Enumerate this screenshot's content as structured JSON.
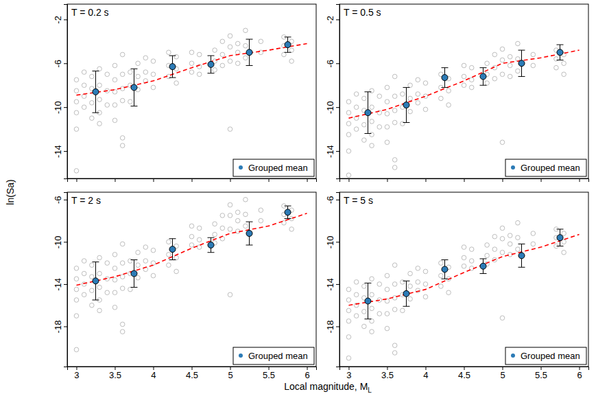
{
  "x_label": "Local magnitude, ML",
  "y_label": "ln(Sa)",
  "chart_data": [
    {
      "type": "scatter",
      "title": "T = 0.2 s",
      "xlim": [
        2.88,
        6.12
      ],
      "xticks": [
        3,
        3.5,
        4,
        4.5,
        5,
        5.5,
        6
      ],
      "ylim": [
        -16.5,
        -0.6
      ],
      "yticks": [
        -2,
        -6,
        -10,
        -14
      ],
      "tick_labels": "y",
      "legend": "bottom-right",
      "series": [
        {
          "type": "scatter",
          "color": "#bdbdbd",
          "marker": "open-circle",
          "x": [
            3,
            3,
            3,
            3,
            3,
            3,
            3.1,
            3.1,
            3.1,
            3.1,
            3.2,
            3.2,
            3.2,
            3.2,
            3.3,
            3.3,
            3.3,
            3.3,
            3.3,
            3.4,
            3.4,
            3.4,
            3.5,
            3.5,
            3.5,
            3.5,
            3.5,
            3.6,
            3.6,
            3.6,
            3.6,
            3.6,
            3.6,
            3.7,
            3.7,
            3.7,
            3.8,
            3.8,
            3.8,
            3.9,
            3.9,
            3.9,
            4,
            4,
            4,
            4.2,
            4.2,
            4.2,
            4.3,
            4.3,
            4.3,
            4.5,
            4.5,
            4.5,
            4.6,
            4.6,
            4.6,
            4.8,
            4.8,
            4.8,
            4.9,
            4.9,
            4.9,
            5,
            5,
            5,
            5,
            5.1,
            5.1,
            5.1,
            5.2,
            5.2,
            5.2,
            5.4,
            5.4,
            5.7,
            5.7,
            5.7,
            5.8,
            5.8,
            5.8
          ],
          "values": [
            -7.5,
            -8.5,
            -9.5,
            -10.5,
            -12,
            -15.8,
            -6.8,
            -8,
            -9,
            -10,
            -7.2,
            -8.3,
            -9.6,
            -11,
            -6.5,
            -8,
            -9.3,
            -10.5,
            -11.5,
            -7,
            -8.5,
            -9.8,
            -6.2,
            -7.5,
            -8.6,
            -9.8,
            -11.2,
            -5.2,
            -7,
            -8.3,
            -9.4,
            -12.8,
            -13.5,
            -6.8,
            -8,
            -9.5,
            -6,
            -7.2,
            -8.4,
            -5.5,
            -6.8,
            -7.6,
            -5.8,
            -7,
            -8.2,
            -5,
            -6.2,
            -7.2,
            -5.4,
            -6.5,
            -7.8,
            -5,
            -6,
            -6.8,
            -5.2,
            -6.3,
            -7,
            -4.8,
            -5.8,
            -6.6,
            -4,
            -5.2,
            -6.2,
            -3.5,
            -4.5,
            -5.8,
            -12,
            -4.2,
            -5,
            -6,
            -3,
            -4.4,
            -5.5,
            -4,
            -5,
            -3.6,
            -4.4,
            -5.2,
            -4,
            -4.8,
            -5.8
          ]
        },
        {
          "type": "line",
          "color": "#ff0000",
          "line_style": "dashed",
          "x": [
            3,
            3.5,
            4,
            4.5,
            5,
            5.5,
            6
          ],
          "values": [
            -8.9,
            -8.4,
            -7.6,
            -6.4,
            -5.3,
            -4.8,
            -4.2
          ]
        },
        {
          "name": "Grouped mean",
          "type": "scatter",
          "color": "#2c7bb6",
          "marker": "circle",
          "x": [
            3.25,
            3.75,
            4.25,
            4.75,
            5.25,
            5.75
          ],
          "values": [
            -8.6,
            -8.2,
            -6.3,
            -6.1,
            -5.0,
            -4.3
          ],
          "error": [
            1.9,
            1.7,
            1.0,
            0.8,
            1.2,
            0.7
          ]
        }
      ]
    },
    {
      "type": "scatter",
      "title": "T = 0.5 s",
      "xlim": [
        2.88,
        6.12
      ],
      "xticks": [
        3,
        3.5,
        4,
        4.5,
        5,
        5.5,
        6
      ],
      "ylim": [
        -16.5,
        -0.6
      ],
      "yticks": [
        -2,
        -6,
        -10,
        -14
      ],
      "tick_labels": "y",
      "legend": "bottom-right",
      "series": [
        {
          "type": "scatter",
          "color": "#bdbdbd",
          "marker": "open-circle",
          "x": [
            3,
            3,
            3,
            3,
            3,
            3,
            3.1,
            3.1,
            3.1,
            3.1,
            3.2,
            3.2,
            3.2,
            3.2,
            3.3,
            3.3,
            3.3,
            3.3,
            3.3,
            3.4,
            3.4,
            3.4,
            3.5,
            3.5,
            3.5,
            3.5,
            3.5,
            3.6,
            3.6,
            3.6,
            3.6,
            3.6,
            3.6,
            3.7,
            3.7,
            3.7,
            3.8,
            3.8,
            3.8,
            3.9,
            3.9,
            3.9,
            4,
            4,
            4,
            4.2,
            4.2,
            4.2,
            4.3,
            4.3,
            4.3,
            4.5,
            4.5,
            4.5,
            4.6,
            4.6,
            4.6,
            4.8,
            4.8,
            4.8,
            4.9,
            4.9,
            4.9,
            5,
            5,
            5,
            5,
            5.1,
            5.1,
            5.1,
            5.2,
            5.2,
            5.2,
            5.4,
            5.4,
            5.7,
            5.7,
            5.7,
            5.8,
            5.8,
            5.8
          ],
          "values": [
            -9.5,
            -10.5,
            -11.5,
            -12.5,
            -14,
            -16.2,
            -8.8,
            -10,
            -11,
            -12,
            -9.2,
            -10.3,
            -11.6,
            -13,
            -8.5,
            -10,
            -11.3,
            -12.5,
            -13.5,
            -9,
            -10.5,
            -11.8,
            -8.2,
            -9.5,
            -10.6,
            -11.8,
            -13.2,
            -7.2,
            -9,
            -10.3,
            -11.4,
            -14.8,
            -15.5,
            -8.8,
            -10,
            -11.5,
            -8,
            -9.2,
            -10.4,
            -7.5,
            -8.8,
            -9.6,
            -7.8,
            -9,
            -10.2,
            -7,
            -8.2,
            -9.2,
            -7.4,
            -8.5,
            -9.8,
            -6.2,
            -7.2,
            -8,
            -6.4,
            -7.5,
            -8.2,
            -6,
            -7,
            -7.8,
            -5.2,
            -6.4,
            -7.4,
            -4.7,
            -5.7,
            -7,
            -13.2,
            -5.4,
            -6.2,
            -7.2,
            -4.2,
            -5.6,
            -6.7,
            -5.2,
            -6.2,
            -4.8,
            -5.6,
            -6.4,
            -5.2,
            -6,
            -7
          ]
        },
        {
          "type": "line",
          "color": "#ff0000",
          "line_style": "dashed",
          "x": [
            3,
            3.5,
            4,
            4.5,
            5,
            5.5,
            6
          ],
          "values": [
            -11.0,
            -10.2,
            -9.0,
            -7.6,
            -6.0,
            -5.5,
            -4.8
          ]
        },
        {
          "name": "Grouped mean",
          "type": "scatter",
          "color": "#2c7bb6",
          "marker": "circle",
          "x": [
            3.25,
            3.75,
            4.25,
            4.75,
            5.25,
            5.75
          ],
          "values": [
            -10.5,
            -9.8,
            -7.3,
            -7.2,
            -6.0,
            -5.0
          ],
          "error": [
            1.9,
            1.6,
            0.9,
            0.8,
            1.2,
            0.7
          ]
        }
      ]
    },
    {
      "type": "scatter",
      "title": "T = 2 s",
      "xlim": [
        2.88,
        6.12
      ],
      "xticks": [
        3,
        3.5,
        4,
        4.5,
        5,
        5.5,
        6
      ],
      "ylim": [
        -21.8,
        -5.3
      ],
      "yticks": [
        -6,
        -10,
        -14,
        -18
      ],
      "legend": "bottom-right",
      "series": [
        {
          "type": "scatter",
          "color": "#bdbdbd",
          "marker": "open-circle",
          "x": [
            3,
            3,
            3,
            3,
            3,
            3,
            3.1,
            3.1,
            3.1,
            3.1,
            3.2,
            3.2,
            3.2,
            3.2,
            3.3,
            3.3,
            3.3,
            3.3,
            3.3,
            3.4,
            3.4,
            3.4,
            3.5,
            3.5,
            3.5,
            3.5,
            3.5,
            3.6,
            3.6,
            3.6,
            3.6,
            3.6,
            3.6,
            3.7,
            3.7,
            3.7,
            3.8,
            3.8,
            3.8,
            3.9,
            3.9,
            3.9,
            4,
            4,
            4,
            4.2,
            4.2,
            4.2,
            4.3,
            4.3,
            4.3,
            4.5,
            4.5,
            4.5,
            4.6,
            4.6,
            4.6,
            4.8,
            4.8,
            4.8,
            4.9,
            4.9,
            4.9,
            5,
            5,
            5,
            5,
            5.1,
            5.1,
            5.1,
            5.2,
            5.2,
            5.2,
            5.4,
            5.4,
            5.7,
            5.7,
            5.7,
            5.8,
            5.8,
            5.8
          ],
          "values": [
            -12.5,
            -13.5,
            -14.5,
            -15.5,
            -17,
            -20.2,
            -11.8,
            -13,
            -14,
            -15,
            -12.2,
            -13.3,
            -14.6,
            -16,
            -11.5,
            -13,
            -14.3,
            -15.5,
            -16.5,
            -12,
            -13.5,
            -14.8,
            -11.2,
            -12.5,
            -13.6,
            -14.8,
            -16.2,
            -10.2,
            -12,
            -13.3,
            -14.4,
            -17.8,
            -18.5,
            -11.8,
            -13,
            -14.5,
            -11,
            -12.2,
            -13.4,
            -10.5,
            -11.8,
            -12.6,
            -10.8,
            -12,
            -13.2,
            -10,
            -11.2,
            -12.2,
            -10.4,
            -11.5,
            -12.8,
            -8.5,
            -9.5,
            -10.3,
            -8.7,
            -9.8,
            -10.5,
            -8.3,
            -9.3,
            -10.1,
            -7.5,
            -8.7,
            -9.7,
            -6.5,
            -7.5,
            -8.8,
            -15,
            -7.2,
            -8,
            -9,
            -6,
            -7.4,
            -8.5,
            -7,
            -8,
            -6.6,
            -7.4,
            -8.2,
            -7,
            -7.8,
            -8.8
          ]
        },
        {
          "type": "line",
          "color": "#ff0000",
          "line_style": "dashed",
          "x": [
            3,
            3.5,
            4,
            4.5,
            5,
            5.5,
            6
          ],
          "values": [
            -14.1,
            -13.3,
            -12.2,
            -10.6,
            -9.2,
            -8.5,
            -7.3
          ]
        },
        {
          "name": "Grouped mean",
          "type": "scatter",
          "color": "#2c7bb6",
          "marker": "circle",
          "x": [
            3.25,
            3.75,
            4.25,
            4.75,
            5.25,
            5.75
          ],
          "values": [
            -13.7,
            -13.0,
            -10.7,
            -10.3,
            -9.2,
            -7.2
          ],
          "error": [
            1.8,
            1.3,
            1.0,
            0.7,
            1.1,
            0.6
          ]
        }
      ]
    },
    {
      "type": "scatter",
      "title": "T = 5 s",
      "xlim": [
        2.88,
        6.12
      ],
      "xticks": [
        3,
        3.5,
        4,
        4.5,
        5,
        5.5,
        6
      ],
      "ylim": [
        -21.8,
        -5.3
      ],
      "yticks": [
        -6,
        -10,
        -14,
        -18
      ],
      "legend": "bottom-right",
      "series": [
        {
          "type": "scatter",
          "color": "#bdbdbd",
          "marker": "open-circle",
          "x": [
            3,
            3,
            3,
            3,
            3,
            3,
            3.1,
            3.1,
            3.1,
            3.1,
            3.2,
            3.2,
            3.2,
            3.2,
            3.3,
            3.3,
            3.3,
            3.3,
            3.3,
            3.4,
            3.4,
            3.4,
            3.5,
            3.5,
            3.5,
            3.5,
            3.5,
            3.6,
            3.6,
            3.6,
            3.6,
            3.6,
            3.6,
            3.7,
            3.7,
            3.7,
            3.8,
            3.8,
            3.8,
            3.9,
            3.9,
            3.9,
            4,
            4,
            4,
            4.2,
            4.2,
            4.2,
            4.3,
            4.3,
            4.3,
            4.5,
            4.5,
            4.5,
            4.6,
            4.6,
            4.6,
            4.8,
            4.8,
            4.8,
            4.9,
            4.9,
            4.9,
            5,
            5,
            5,
            5,
            5.1,
            5.1,
            5.1,
            5.2,
            5.2,
            5.2,
            5.4,
            5.4,
            5.7,
            5.7,
            5.7,
            5.8,
            5.8,
            5.8
          ],
          "values": [
            -14.5,
            -15.5,
            -16.5,
            -17.5,
            -19,
            -21,
            -13.8,
            -15,
            -16,
            -17,
            -14.2,
            -15.3,
            -16.6,
            -18,
            -13.5,
            -15,
            -16.3,
            -17.5,
            -18.5,
            -14,
            -15.5,
            -16.8,
            -13.2,
            -14.5,
            -15.6,
            -16.8,
            -18.2,
            -12.2,
            -14,
            -15.3,
            -16.4,
            -19.8,
            -20.5,
            -13.8,
            -15,
            -16.5,
            -13,
            -14.2,
            -15.4,
            -12.5,
            -13.8,
            -14.6,
            -12.8,
            -14,
            -15.2,
            -12,
            -13.2,
            -14.2,
            -12.4,
            -13.5,
            -14.8,
            -10.5,
            -11.5,
            -12.3,
            -10.7,
            -11.8,
            -12.5,
            -10.3,
            -11.3,
            -12.1,
            -9.5,
            -10.7,
            -11.7,
            -8.7,
            -9.7,
            -11,
            -17.2,
            -9.4,
            -10.2,
            -11.2,
            -8.2,
            -9.6,
            -10.7,
            -9.2,
            -10.2,
            -8.8,
            -9.6,
            -10.4,
            -9.2,
            -10,
            -11
          ]
        },
        {
          "type": "line",
          "color": "#ff0000",
          "line_style": "dashed",
          "x": [
            3,
            3.5,
            4,
            4.5,
            5,
            5.5,
            6
          ],
          "values": [
            -16.0,
            -15.4,
            -14.5,
            -12.9,
            -11.4,
            -10.5,
            -9.3
          ]
        },
        {
          "name": "Grouped mean",
          "type": "scatter",
          "color": "#2c7bb6",
          "marker": "circle",
          "x": [
            3.25,
            3.75,
            4.25,
            4.75,
            5.25,
            5.75
          ],
          "values": [
            -15.6,
            -14.9,
            -12.6,
            -12.3,
            -11.3,
            -9.6
          ],
          "error": [
            1.7,
            1.2,
            0.9,
            0.7,
            1.1,
            0.8
          ]
        }
      ]
    }
  ]
}
